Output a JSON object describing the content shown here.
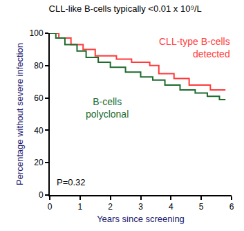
{
  "chart_data": {
    "type": "line",
    "title": "CLL-like B-cells typically <0.01 x 10⁹/L",
    "x_label": "Years since screening",
    "y_label": "Percentage without severe infection",
    "annotations": [
      "P=0.32"
    ],
    "line_style": "step",
    "legend": false,
    "grid": false,
    "xlim": [
      0,
      6
    ],
    "xticks": [
      0,
      1,
      2,
      3,
      4,
      5,
      6
    ],
    "ylim": [
      0,
      100
    ],
    "yticks": [
      0,
      20,
      40,
      60,
      80,
      100
    ],
    "series": [
      {
        "name": "CLL-type B-cells detected",
        "color": "#ff3b3b",
        "x": [
          0,
          0.3,
          0.7,
          1.1,
          1.5,
          2.2,
          2.7,
          3.3,
          3.6,
          4.1,
          4.6,
          5.3,
          5.8
        ],
        "values": [
          100,
          97,
          93,
          90,
          86,
          84,
          82,
          80,
          75,
          72,
          68,
          65,
          65
        ]
      },
      {
        "name": "B-cells polyclonal",
        "color": "#1e6b2e",
        "x": [
          0,
          0.2,
          0.5,
          0.9,
          1.2,
          1.6,
          2.0,
          2.5,
          3.0,
          3.4,
          3.8,
          4.3,
          4.8,
          5.2,
          5.6,
          5.8
        ],
        "values": [
          100,
          97,
          93,
          89,
          85,
          82,
          79,
          76,
          73,
          71,
          68,
          65,
          63,
          61,
          59,
          59
        ]
      }
    ]
  }
}
